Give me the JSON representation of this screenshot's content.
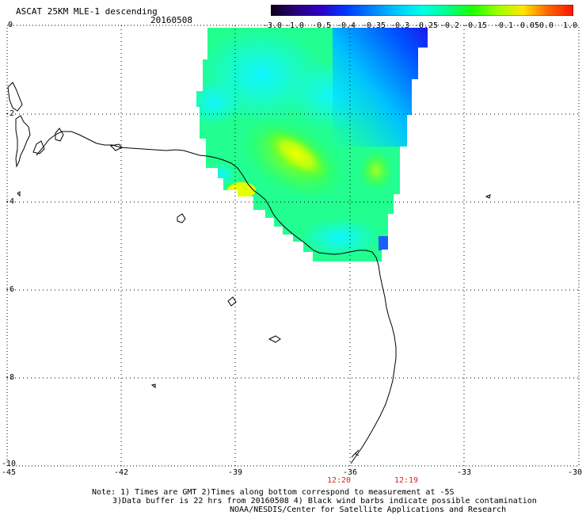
{
  "title": "ASCAT 25KM MLE-1 descending",
  "date": "20160508",
  "colorbar": {
    "labels": [
      "-3.0",
      "-1.0",
      "-0.5",
      "-0.4",
      "-0.35",
      "-0.3",
      "-0.25",
      "-0.2",
      "-0.15",
      "-0.1",
      "-0.05",
      "0.0",
      "1.0"
    ],
    "colors": [
      "#0d0019",
      "#2a007a",
      "#2d00c8",
      "#0038ff",
      "#0082ff",
      "#00c8ff",
      "#00ffe6",
      "#00ff8c",
      "#1eff00",
      "#9cff00",
      "#ffe600",
      "#ff6400",
      "#ff1400"
    ]
  },
  "map": {
    "lon_range": [
      -45,
      -30
    ],
    "lat_range": [
      -10,
      0
    ],
    "x_ticks": [
      "-45",
      "-42",
      "-39",
      "-36",
      "-33",
      "-30"
    ],
    "y_ticks": [
      "0",
      "-2",
      "-4",
      "-6",
      "-8",
      "-10"
    ],
    "grid": "dotted"
  },
  "times": [
    "12:20",
    "12:19"
  ],
  "note": {
    "line1": "Note: 1) Times are GMT 2)Times along bottom correspond to measurement at -5S",
    "line2": "3)Data buffer is 22 hrs from 20160508 4) Black wind barbs indicate possible contamination",
    "line3": "NOAA/NESDIS/Center for Satellite Applications and Research"
  }
}
